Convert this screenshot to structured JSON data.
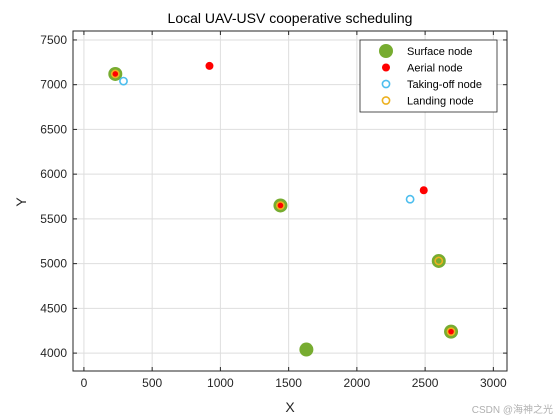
{
  "chart_data": {
    "type": "scatter",
    "title": "Local UAV-USV cooperative scheduling",
    "xlabel": "X",
    "ylabel": "Y",
    "xlim": [
      -80,
      3100
    ],
    "ylim": [
      3800,
      7600
    ],
    "xticks": [
      0,
      500,
      1000,
      1500,
      2000,
      2500,
      3000
    ],
    "yticks": [
      4000,
      4500,
      5000,
      5500,
      6000,
      6500,
      7000,
      7500
    ],
    "grid": true,
    "legend_position": "top-right",
    "series": [
      {
        "name": "Surface node",
        "marker": "filled-circle-large",
        "color": "#77ac30",
        "points": [
          [
            230,
            7120
          ],
          [
            1440,
            5650
          ],
          [
            1630,
            4040
          ],
          [
            2600,
            5030
          ],
          [
            2690,
            4240
          ]
        ]
      },
      {
        "name": "Aerial node",
        "marker": "filled-circle",
        "color": "#ff0000",
        "points": [
          [
            230,
            7120
          ],
          [
            920,
            7210
          ],
          [
            1440,
            5650
          ],
          [
            2490,
            5820
          ],
          [
            2690,
            4240
          ]
        ]
      },
      {
        "name": "Taking-off node",
        "marker": "open-circle",
        "color": "#4dbeee",
        "points": [
          [
            290,
            7040
          ],
          [
            2390,
            5720
          ]
        ]
      },
      {
        "name": "Landing node",
        "marker": "open-circle",
        "color": "#edb120",
        "points": [
          [
            230,
            7120
          ],
          [
            1440,
            5650
          ],
          [
            2600,
            5030
          ],
          [
            2690,
            4240
          ]
        ]
      }
    ]
  },
  "watermark": "CSDN @海神之光"
}
